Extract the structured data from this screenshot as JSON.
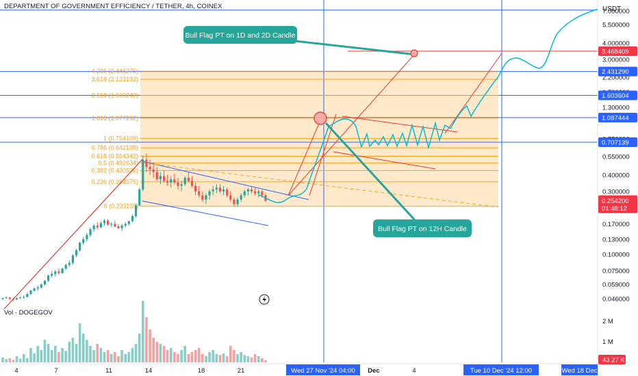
{
  "header": {
    "title": "DEPARTMENT OF GOVERNMENT EFFICIENCY / TETHER, 4h, COINEX",
    "currency": "USDT"
  },
  "volume_label": "Vol · DOGEGOV",
  "colors": {
    "up": "#26a69a",
    "down": "#ef5350",
    "fib": "#f7a21b",
    "fib_fill": "#fde2b8",
    "blue": "#2962ff",
    "red": "#e53935",
    "teal": "#00bcd4",
    "callout": "#26a69a",
    "badge_blue": "#2962ff",
    "badge_red": "#f23645"
  },
  "chart_data": {
    "type": "candlestick",
    "y_scale": "log",
    "y_ticks": [
      "7.000000",
      "5.500000",
      "4.000000",
      "3.000000",
      "2.200000",
      "1.700000",
      "1.300000",
      "0.750000",
      "0.550000",
      "0.400000",
      "0.300000",
      "0.170000",
      "0.130000",
      "0.100000",
      "0.075000",
      "0.059000",
      "0.046000"
    ],
    "x_ticks": [
      "4",
      "7",
      "11",
      "14",
      "18",
      "21",
      "Dec",
      "4"
    ],
    "x_highlight_labels": [
      "Wed 27 Nov '24   04:00",
      "Tue 10 Dec '24   12:00",
      "Wed 18 Dec"
    ],
    "price_badges": [
      {
        "text": "3.468409",
        "style": "red"
      },
      {
        "text": "2.431290",
        "style": "blue"
      },
      {
        "text": "1.603604",
        "style": "blue"
      },
      {
        "text": "1.087444",
        "style": "blue"
      },
      {
        "text": "0.707139",
        "style": "blue"
      }
    ],
    "current_price": "0.254200",
    "countdown": "01:48:12",
    "volume_ticks": [
      "2 M",
      "1 M"
    ],
    "volume_current": "43.27 K",
    "fib_levels": [
      {
        "label": "4.236 (2.446275)",
        "price": 2.446275
      },
      {
        "label": "3.618 (2.123192)",
        "price": 2.123192
      },
      {
        "label": "2.618 (1.600242)",
        "price": 1.600242
      },
      {
        "label": "1.618 (1.077292)",
        "price": 1.077292
      },
      {
        "label": "1 (0.754109)",
        "price": 0.754109
      },
      {
        "label": "0.786 (0.642198)",
        "price": 0.642198
      },
      {
        "label": "0.618 (0.554342)",
        "price": 0.554342
      },
      {
        "label": "0.5 (0.492634)",
        "price": 0.492634
      },
      {
        "label": "0.382 (0.430926)",
        "price": 0.430926
      },
      {
        "label": "0.236 (0.354575)",
        "price": 0.354575
      },
      {
        "label": "0 (0.231159)",
        "price": 0.231159
      }
    ],
    "horizontal_lines": [
      7.1,
      2.43129,
      1.603604,
      1.087444,
      0.707139
    ],
    "target_line": 3.468409,
    "annotations": [
      "Bull Flag PT on 1D and 2D Candle",
      "Bull Flag PT on 12H Candle"
    ],
    "candles_approx": [
      [
        0.046,
        0.047,
        0.045,
        0.0465
      ],
      [
        0.0465,
        0.048,
        0.046,
        0.047
      ],
      [
        0.047,
        0.0475,
        0.045,
        0.046
      ],
      [
        0.046,
        0.047,
        0.044,
        0.0455
      ],
      [
        0.0455,
        0.047,
        0.045,
        0.0465
      ],
      [
        0.0465,
        0.048,
        0.046,
        0.047
      ],
      [
        0.047,
        0.049,
        0.046,
        0.0475
      ],
      [
        0.0475,
        0.051,
        0.047,
        0.05
      ],
      [
        0.05,
        0.054,
        0.049,
        0.053
      ],
      [
        0.053,
        0.056,
        0.052,
        0.055
      ],
      [
        0.055,
        0.058,
        0.053,
        0.056
      ],
      [
        0.056,
        0.06,
        0.055,
        0.059
      ],
      [
        0.059,
        0.064,
        0.058,
        0.063
      ],
      [
        0.063,
        0.07,
        0.062,
        0.069
      ],
      [
        0.069,
        0.075,
        0.067,
        0.071
      ],
      [
        0.071,
        0.076,
        0.068,
        0.074
      ],
      [
        0.074,
        0.078,
        0.07,
        0.072
      ],
      [
        0.072,
        0.079,
        0.071,
        0.078
      ],
      [
        0.078,
        0.085,
        0.076,
        0.083
      ],
      [
        0.083,
        0.09,
        0.08,
        0.086
      ],
      [
        0.086,
        0.1,
        0.084,
        0.098
      ],
      [
        0.098,
        0.11,
        0.095,
        0.107
      ],
      [
        0.107,
        0.125,
        0.105,
        0.122
      ],
      [
        0.122,
        0.135,
        0.118,
        0.13
      ],
      [
        0.13,
        0.145,
        0.125,
        0.14
      ],
      [
        0.14,
        0.16,
        0.135,
        0.155
      ],
      [
        0.155,
        0.17,
        0.148,
        0.165
      ],
      [
        0.165,
        0.175,
        0.155,
        0.16
      ],
      [
        0.16,
        0.178,
        0.158,
        0.172
      ],
      [
        0.172,
        0.185,
        0.165,
        0.18
      ],
      [
        0.18,
        0.185,
        0.165,
        0.168
      ],
      [
        0.168,
        0.175,
        0.16,
        0.17
      ],
      [
        0.17,
        0.18,
        0.16,
        0.163
      ],
      [
        0.163,
        0.17,
        0.155,
        0.158
      ],
      [
        0.158,
        0.17,
        0.15,
        0.165
      ],
      [
        0.165,
        0.175,
        0.16,
        0.17
      ],
      [
        0.17,
        0.18,
        0.165,
        0.178
      ],
      [
        0.178,
        0.2,
        0.175,
        0.195
      ],
      [
        0.195,
        0.24,
        0.19,
        0.235
      ],
      [
        0.235,
        0.32,
        0.23,
        0.31
      ],
      [
        0.31,
        0.56,
        0.3,
        0.52
      ],
      [
        0.52,
        0.58,
        0.42,
        0.46
      ],
      [
        0.46,
        0.52,
        0.4,
        0.44
      ],
      [
        0.44,
        0.5,
        0.38,
        0.42
      ],
      [
        0.42,
        0.46,
        0.36,
        0.37
      ],
      [
        0.37,
        0.42,
        0.34,
        0.39
      ],
      [
        0.39,
        0.43,
        0.35,
        0.36
      ],
      [
        0.36,
        0.4,
        0.33,
        0.35
      ],
      [
        0.35,
        0.39,
        0.32,
        0.37
      ],
      [
        0.37,
        0.41,
        0.34,
        0.35
      ],
      [
        0.35,
        0.38,
        0.31,
        0.33
      ],
      [
        0.33,
        0.36,
        0.3,
        0.34
      ],
      [
        0.34,
        0.39,
        0.33,
        0.38
      ],
      [
        0.38,
        0.42,
        0.35,
        0.36
      ],
      [
        0.36,
        0.39,
        0.32,
        0.33
      ],
      [
        0.33,
        0.35,
        0.28,
        0.3
      ],
      [
        0.3,
        0.33,
        0.27,
        0.28
      ],
      [
        0.28,
        0.3,
        0.25,
        0.26
      ],
      [
        0.26,
        0.29,
        0.24,
        0.28
      ],
      [
        0.28,
        0.31,
        0.26,
        0.3
      ],
      [
        0.3,
        0.33,
        0.28,
        0.31
      ],
      [
        0.31,
        0.34,
        0.29,
        0.32
      ],
      [
        0.32,
        0.34,
        0.29,
        0.3
      ],
      [
        0.3,
        0.33,
        0.28,
        0.31
      ],
      [
        0.31,
        0.32,
        0.27,
        0.28
      ],
      [
        0.28,
        0.3,
        0.25,
        0.26
      ],
      [
        0.26,
        0.27,
        0.23,
        0.24
      ],
      [
        0.24,
        0.27,
        0.23,
        0.26
      ],
      [
        0.26,
        0.29,
        0.25,
        0.28
      ],
      [
        0.28,
        0.31,
        0.27,
        0.3
      ],
      [
        0.3,
        0.32,
        0.28,
        0.31
      ],
      [
        0.31,
        0.33,
        0.29,
        0.3
      ],
      [
        0.3,
        0.32,
        0.28,
        0.29
      ],
      [
        0.29,
        0.31,
        0.27,
        0.3
      ],
      [
        0.3,
        0.31,
        0.27,
        0.28
      ],
      [
        0.28,
        0.29,
        0.25,
        0.254
      ]
    ],
    "volumes_approx": [
      0.12,
      0.08,
      0.1,
      0.06,
      0.15,
      0.09,
      0.2,
      0.1,
      0.35,
      0.22,
      0.4,
      0.3,
      0.55,
      0.45,
      0.3,
      0.4,
      0.25,
      0.35,
      0.28,
      0.5,
      0.6,
      0.45,
      0.95,
      0.7,
      0.55,
      0.4,
      0.3,
      0.45,
      0.35,
      0.25,
      0.3,
      0.2,
      0.25,
      0.15,
      0.3,
      0.2,
      0.25,
      0.35,
      0.45,
      0.7,
      1.5,
      1.1,
      0.8,
      0.6,
      0.5,
      0.45,
      0.4,
      0.3,
      0.35,
      0.25,
      0.2,
      0.3,
      0.4,
      0.2,
      0.25,
      0.3,
      0.35,
      0.2,
      0.15,
      0.25,
      0.3,
      0.2,
      0.18,
      0.22,
      0.15,
      0.4,
      0.3,
      0.2,
      0.25,
      0.18,
      0.15,
      0.12,
      0.2,
      0.15,
      0.1,
      0.05
    ]
  }
}
